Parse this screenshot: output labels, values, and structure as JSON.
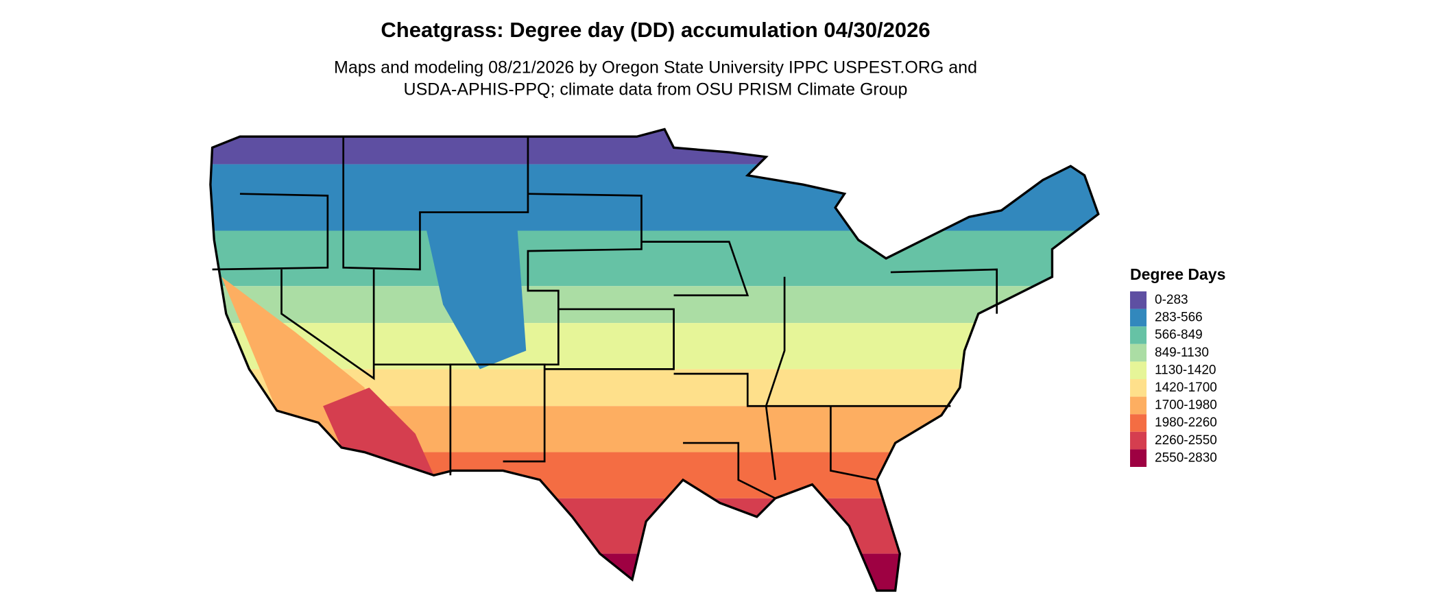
{
  "header": {
    "title": "Cheatgrass: Degree day (DD) accumulation 04/30/2026",
    "subtitle": [
      "Maps and modeling 08/21/2026 by Oregon State University IPPC USPEST.ORG and",
      "USDA-APHIS-PPQ; climate data from OSU PRISM Climate Group"
    ]
  },
  "legend": {
    "title": "Degree Days",
    "items": [
      {
        "label": "0-283",
        "color": "#5e4fa2"
      },
      {
        "label": "283-566",
        "color": "#3288bd"
      },
      {
        "label": "566-849",
        "color": "#66c2a5"
      },
      {
        "label": "849-1130",
        "color": "#abdda4"
      },
      {
        "label": "1130-1420",
        "color": "#e6f598"
      },
      {
        "label": "1420-1700",
        "color": "#fee08b"
      },
      {
        "label": "1700-1980",
        "color": "#fdae61"
      },
      {
        "label": "1980-2260",
        "color": "#f46d43"
      },
      {
        "label": "2260-2550",
        "color": "#d53e4f"
      },
      {
        "label": "2550-2830",
        "color": "#9e0142"
      }
    ]
  }
}
